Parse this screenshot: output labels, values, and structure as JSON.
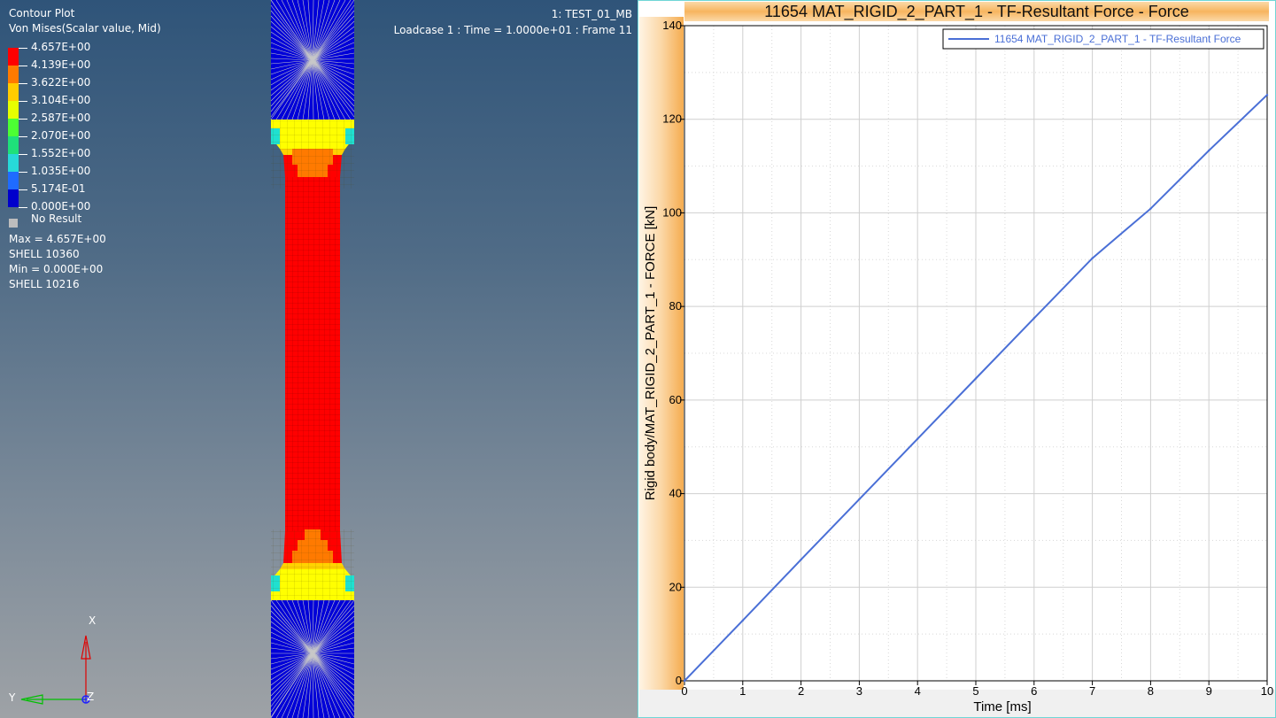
{
  "viewport": {
    "legend_title_line1": "Contour Plot",
    "legend_title_line2": "Von Mises(Scalar value, Mid)",
    "legend_entries": [
      {
        "label": "4.657E+00",
        "color": "#ff0000"
      },
      {
        "label": "4.139E+00",
        "color": "#ff7a00"
      },
      {
        "label": "3.622E+00",
        "color": "#ffcc00"
      },
      {
        "label": "3.104E+00",
        "color": "#e6ff00"
      },
      {
        "label": "2.587E+00",
        "color": "#4cff33"
      },
      {
        "label": "2.070E+00",
        "color": "#1fe07a"
      },
      {
        "label": "1.552E+00",
        "color": "#27d9d9"
      },
      {
        "label": "1.035E+00",
        "color": "#1f6bff"
      },
      {
        "label": "5.174E-01",
        "color": "#0000cc"
      },
      {
        "label": "0.000E+00",
        "color": null
      }
    ],
    "no_result_label": "No Result",
    "stats": {
      "max": "Max =  4.657E+00",
      "max_element": "SHELL 10360",
      "min": "Min =  0.000E+00",
      "min_element": "SHELL 10216"
    },
    "model_name": "1: TEST_01_MB",
    "loadcase": "Loadcase 1 : Time = 1.0000e+01 : Frame 11",
    "triad": {
      "x": "X",
      "y": "Y",
      "z": "Z"
    }
  },
  "plot": {
    "title": "11654 MAT_RIGID_2_PART_1 - TF-Resultant Force - Force",
    "legend_entry": "11654 MAT_RIGID_2_PART_1 - TF-Resultant Force",
    "series_color": "#4a6fd6"
  },
  "chart_data": {
    "type": "line",
    "xlabel": "Time [ms]",
    "ylabel": "Rigid body/MAT_RIGID_2_PART_1 - FORCE [kN]",
    "xlim": [
      0,
      10
    ],
    "ylim": [
      0,
      140
    ],
    "x_ticks": [
      0,
      1,
      2,
      3,
      4,
      5,
      6,
      7,
      8,
      9,
      10
    ],
    "y_ticks": [
      0,
      20,
      40,
      60,
      80,
      100,
      120,
      140
    ],
    "grid": true,
    "legend_position": "top-right",
    "series": [
      {
        "name": "11654 MAT_RIGID_2_PART_1 - TF-Resultant Force",
        "x": [
          0,
          1,
          2,
          3,
          4,
          5,
          6,
          7,
          8,
          9,
          10
        ],
        "y": [
          0,
          12.9,
          25.9,
          38.8,
          51.7,
          64.6,
          77.5,
          90.3,
          100.9,
          113.3,
          125.2
        ]
      }
    ]
  }
}
